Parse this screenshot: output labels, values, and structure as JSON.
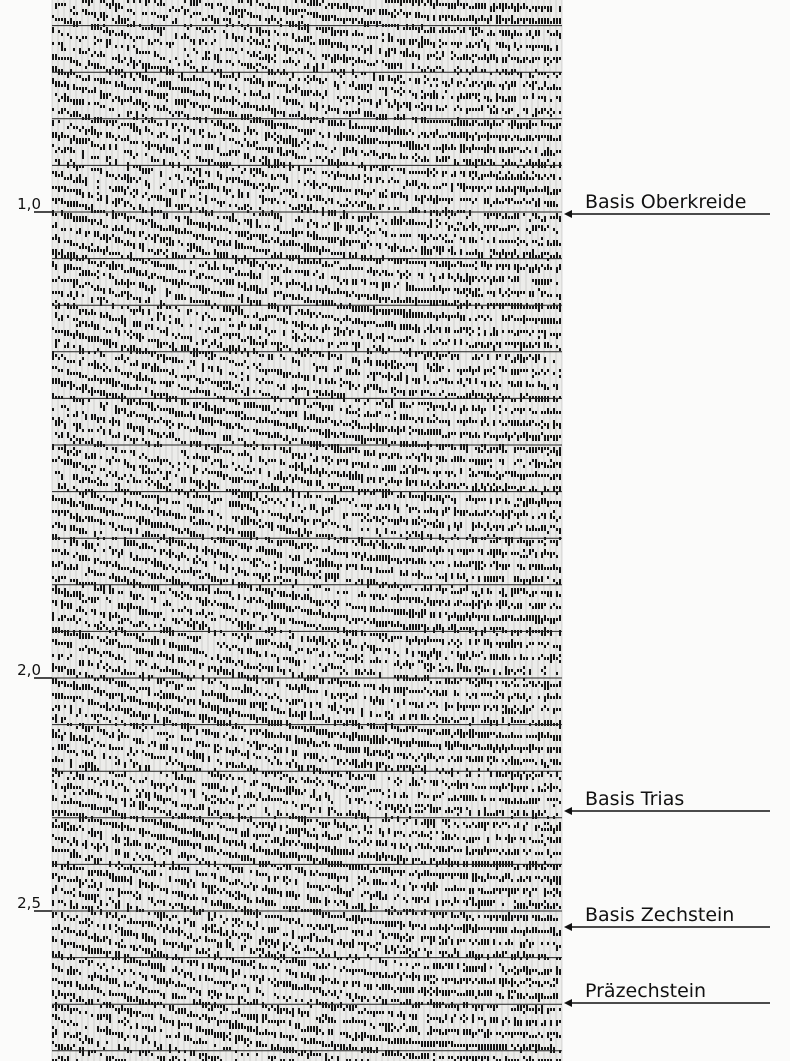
{
  "time_axis": {
    "ticks": [
      {
        "value": 1.0,
        "label": "1,0"
      },
      {
        "value": 2.0,
        "label": "2,0"
      },
      {
        "value": 2.5,
        "label": "2,5"
      }
    ]
  },
  "horizons": [
    {
      "label": "Basis Oberkreide"
    },
    {
      "label": "Basis Trias"
    },
    {
      "label": "Basis Zechstein"
    },
    {
      "label": "Präzechstein"
    }
  ]
}
